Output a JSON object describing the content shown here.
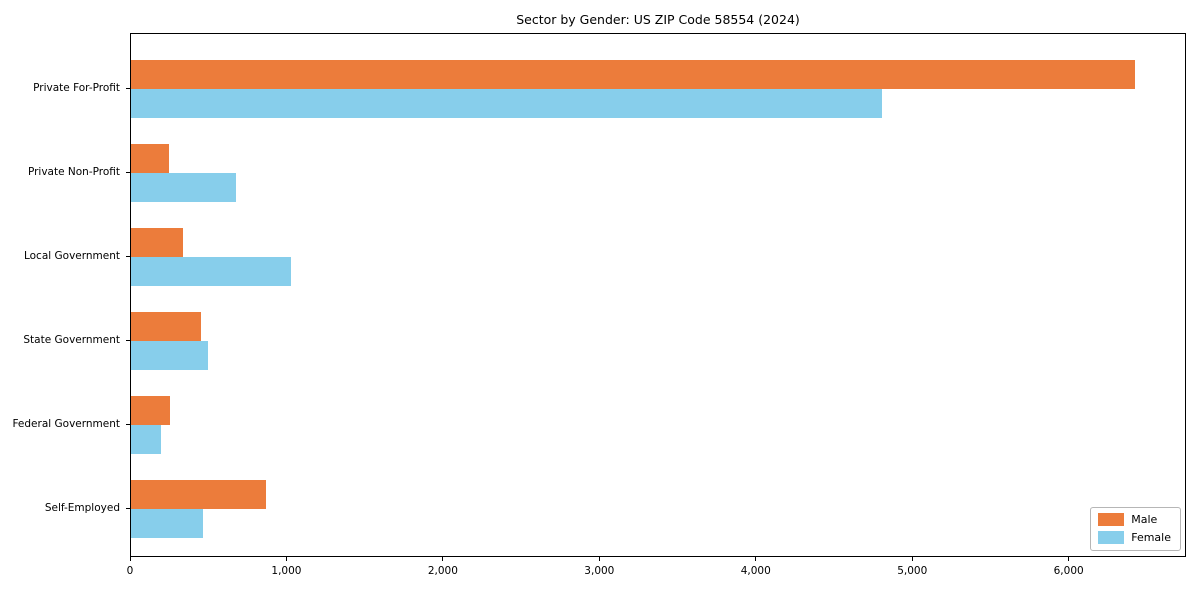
{
  "title": "Sector by Gender: US ZIP Code 58554 (2024)",
  "chart_data": {
    "type": "bar",
    "orientation": "horizontal",
    "title": "Sector by Gender: US ZIP Code 58554 (2024)",
    "categories": [
      "Private For-Profit",
      "Private Non-Profit",
      "Local Government",
      "State Government",
      "Federal Government",
      "Self-Employed"
    ],
    "series": [
      {
        "name": "Male",
        "color": "#EC7C3B",
        "values": [
          6420,
          245,
          330,
          450,
          250,
          860
        ]
      },
      {
        "name": "Female",
        "color": "#87CEEB",
        "values": [
          4800,
          670,
          1020,
          490,
          190,
          460
        ]
      }
    ],
    "xlabel": "",
    "ylabel": "",
    "xlim": [
      0,
      6750
    ],
    "xticks": [
      0,
      1000,
      2000,
      3000,
      4000,
      5000,
      6000
    ],
    "xtick_labels": [
      "0",
      "1,000",
      "2,000",
      "3,000",
      "4,000",
      "5,000",
      "6,000"
    ],
    "grid": false,
    "legend": {
      "position": "lower right",
      "entries": [
        "Male",
        "Female"
      ]
    }
  }
}
